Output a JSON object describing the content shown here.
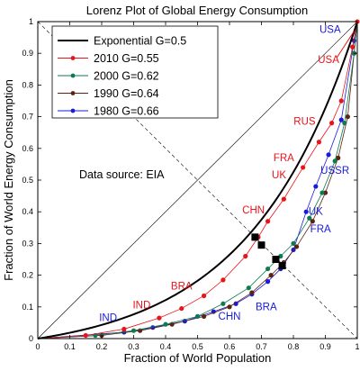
{
  "chart_data": {
    "type": "line",
    "title": "Lorenz Plot of Global Energy Consumption",
    "xlabel": "Fraction of World Population",
    "ylabel": "Fraction of World Energy Consumption",
    "xlim": [
      0,
      1
    ],
    "ylim": [
      0,
      1
    ],
    "xticks": [
      "0",
      "0.1",
      "0.2",
      "0.3",
      "0.4",
      "0.5",
      "0.6",
      "0.7",
      "0.8",
      "0.9",
      "1"
    ],
    "yticks": [
      "0",
      "0.1",
      "0.2",
      "0.3",
      "0.4",
      "0.5",
      "0.6",
      "0.7",
      "0.8",
      "0.9",
      "1"
    ],
    "grid": false,
    "legend_position": "top-left",
    "annotation": "Data source: EIA",
    "series": [
      {
        "name": "Exponential G=0.5",
        "color": "#000000",
        "style": "smooth-curve",
        "x": [
          0,
          0.1,
          0.2,
          0.3,
          0.4,
          0.5,
          0.6,
          0.7,
          0.8,
          0.9,
          0.95,
          1
        ],
        "y": [
          0,
          0.0115,
          0.0277,
          0.0504,
          0.0823,
          0.1269,
          0.1897,
          0.2777,
          0.4013,
          0.5747,
          0.6893,
          1
        ]
      },
      {
        "name": "2010 G=0.55",
        "color": "#e8141a",
        "x": [
          0,
          0.15,
          0.27,
          0.38,
          0.45,
          0.52,
          0.58,
          0.65,
          0.69,
          0.72,
          0.77,
          0.83,
          0.88,
          0.92,
          0.95,
          0.985,
          1
        ],
        "y": [
          0,
          0.01,
          0.03,
          0.065,
          0.095,
          0.135,
          0.185,
          0.26,
          0.32,
          0.37,
          0.44,
          0.54,
          0.62,
          0.68,
          0.75,
          0.92,
          1
        ]
      },
      {
        "name": "2000 G=0.62",
        "color": "#0f7a52",
        "x": [
          0,
          0.18,
          0.3,
          0.4,
          0.5,
          0.58,
          0.66,
          0.72,
          0.76,
          0.8,
          0.85,
          0.89,
          0.93,
          0.96,
          0.99,
          1
        ],
        "y": [
          0,
          0.01,
          0.025,
          0.045,
          0.07,
          0.11,
          0.16,
          0.22,
          0.26,
          0.3,
          0.38,
          0.46,
          0.56,
          0.68,
          0.9,
          1
        ]
      },
      {
        "name": "1990 G=0.64",
        "color": "#5a2410",
        "x": [
          0,
          0.2,
          0.32,
          0.42,
          0.52,
          0.6,
          0.67,
          0.73,
          0.77,
          0.81,
          0.86,
          0.9,
          0.94,
          0.97,
          0.99,
          1
        ],
        "y": [
          0,
          0.01,
          0.025,
          0.045,
          0.07,
          0.1,
          0.145,
          0.2,
          0.24,
          0.29,
          0.37,
          0.46,
          0.57,
          0.7,
          0.9,
          1
        ]
      },
      {
        "name": "1980 G=0.66",
        "color": "#1a1adc",
        "x": [
          0,
          0.27,
          0.36,
          0.46,
          0.55,
          0.62,
          0.67,
          0.72,
          0.76,
          0.8,
          0.84,
          0.87,
          0.91,
          0.95,
          0.99,
          1
        ],
        "y": [
          0,
          0.02,
          0.035,
          0.055,
          0.085,
          0.11,
          0.14,
          0.18,
          0.22,
          0.28,
          0.4,
          0.48,
          0.58,
          0.69,
          0.94,
          1
        ]
      }
    ],
    "gini_markers": [
      {
        "x": 0.68,
        "y": 0.32
      },
      {
        "x": 0.7,
        "y": 0.295
      },
      {
        "x": 0.745,
        "y": 0.25
      },
      {
        "x": 0.765,
        "y": 0.23
      }
    ],
    "country_labels": [
      {
        "text": "USA",
        "x": 0.915,
        "y": 0.965,
        "color": "#1a1adc"
      },
      {
        "text": "USA",
        "x": 0.91,
        "y": 0.87,
        "color": "#e8141a"
      },
      {
        "text": "RUS",
        "x": 0.835,
        "y": 0.675,
        "color": "#e8141a"
      },
      {
        "text": "FRA",
        "x": 0.77,
        "y": 0.56,
        "color": "#e8141a"
      },
      {
        "text": "UK",
        "x": 0.755,
        "y": 0.505,
        "color": "#e8141a"
      },
      {
        "text": "USSR",
        "x": 0.93,
        "y": 0.52,
        "color": "#1a1adc"
      },
      {
        "text": "CHN",
        "x": 0.675,
        "y": 0.395,
        "color": "#e8141a"
      },
      {
        "text": "UK",
        "x": 0.87,
        "y": 0.39,
        "color": "#1a1adc"
      },
      {
        "text": "FRA",
        "x": 0.885,
        "y": 0.335,
        "color": "#1a1adc"
      },
      {
        "text": "BRA",
        "x": 0.45,
        "y": 0.155,
        "color": "#e8141a"
      },
      {
        "text": "IND",
        "x": 0.325,
        "y": 0.095,
        "color": "#e8141a"
      },
      {
        "text": "BRA",
        "x": 0.715,
        "y": 0.09,
        "color": "#1a1adc"
      },
      {
        "text": "CHN",
        "x": 0.6,
        "y": 0.06,
        "color": "#1a1adc"
      },
      {
        "text": "IND",
        "x": 0.22,
        "y": 0.055,
        "color": "#1a1adc"
      }
    ]
  }
}
